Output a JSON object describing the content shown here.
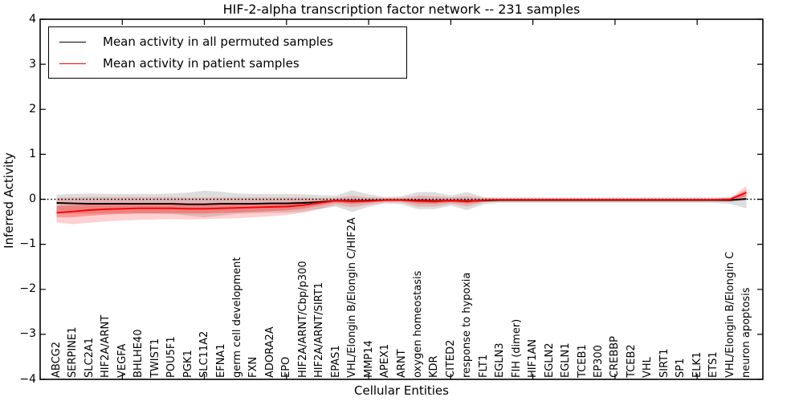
{
  "chart_data": {
    "type": "line",
    "title": "HIF-2-alpha transcription factor network -- 231 samples",
    "xlabel": "Cellular Entities",
    "ylabel": "Inferred Activity",
    "ylim": [
      -4,
      4
    ],
    "yticks": [
      -4,
      -3,
      -2,
      -1,
      0,
      1,
      2,
      3,
      4
    ],
    "xlim": [
      0,
      44
    ],
    "x_tick_step": 5,
    "grid": false,
    "zero_line": {
      "style": "dotted",
      "color": "#000000",
      "y": 0
    },
    "legend": {
      "position": "upper left",
      "items": [
        {
          "label": "Mean activity in all permuted samples",
          "color": "#000000"
        },
        {
          "label": "Mean activity in patient samples",
          "color": "#ff0000"
        }
      ]
    },
    "categories": [
      "ABCG2",
      "SERPINE1",
      "SLC2A1",
      "HIF2A/ARNT",
      "VEGFA",
      "BHLHE40",
      "TWIST1",
      "POU5F1",
      "PGK1",
      "SLC11A2",
      "EFNA1",
      "germ cell development",
      "FXN",
      "ADORA2A",
      "EPO",
      "HIF2A/ARNT/Cbp/p300",
      "HIF2A/ARNT/SIRT1",
      "EPAS1",
      "VHL/Elongin B/Elongin C/HIF2A",
      "MMP14",
      "APEX1",
      "ARNT",
      "oxygen homeostasis",
      "KDR",
      "CITED2",
      "response to hypoxia",
      "FLT1",
      "EGLN3",
      "FIH (dimer)",
      "HIF1AN",
      "EGLN2",
      "EGLN1",
      "TCEB1",
      "EP300",
      "CREBBP",
      "TCEB2",
      "VHL",
      "SIRT1",
      "SP1",
      "ELK1",
      "ETS1",
      "VHL/Elongin B/Elongin C",
      "neuron apoptosis"
    ],
    "series": [
      {
        "name": "Mean activity in all permuted samples",
        "color": "#000000",
        "band_color": "rgba(100,100,100,0.22)",
        "values": [
          -0.08,
          -0.09,
          -0.1,
          -0.1,
          -0.1,
          -0.1,
          -0.1,
          -0.1,
          -0.11,
          -0.11,
          -0.1,
          -0.1,
          -0.1,
          -0.09,
          -0.09,
          -0.08,
          -0.06,
          -0.03,
          -0.04,
          -0.03,
          -0.02,
          -0.02,
          -0.03,
          -0.04,
          -0.03,
          -0.04,
          -0.03,
          -0.02,
          -0.02,
          -0.02,
          -0.02,
          -0.02,
          -0.02,
          -0.02,
          -0.02,
          -0.02,
          -0.02,
          -0.02,
          -0.02,
          -0.02,
          -0.02,
          -0.02,
          0.01
        ],
        "band_upper": [
          0.1,
          0.12,
          0.13,
          0.12,
          0.12,
          0.12,
          0.12,
          0.13,
          0.15,
          0.19,
          0.17,
          0.13,
          0.12,
          0.12,
          0.12,
          0.11,
          0.09,
          0.08,
          0.2,
          0.11,
          0.05,
          0.07,
          0.16,
          0.16,
          0.08,
          0.16,
          0.05,
          0.04,
          0.04,
          0.04,
          0.04,
          0.04,
          0.04,
          0.04,
          0.04,
          0.04,
          0.04,
          0.04,
          0.04,
          0.04,
          0.04,
          0.05,
          0.1
        ],
        "band_lower": [
          -0.3,
          -0.32,
          -0.32,
          -0.31,
          -0.31,
          -0.31,
          -0.32,
          -0.33,
          -0.36,
          -0.4,
          -0.36,
          -0.32,
          -0.31,
          -0.3,
          -0.3,
          -0.27,
          -0.22,
          -0.16,
          -0.28,
          -0.17,
          -0.09,
          -0.11,
          -0.22,
          -0.22,
          -0.14,
          -0.24,
          -0.11,
          -0.08,
          -0.08,
          -0.08,
          -0.08,
          -0.08,
          -0.08,
          -0.08,
          -0.08,
          -0.08,
          -0.08,
          -0.08,
          -0.08,
          -0.08,
          -0.08,
          -0.1,
          -0.2
        ]
      },
      {
        "name": "Mean activity in patient samples",
        "color": "#ff0000",
        "band_color": "rgba(255,0,0,0.18)",
        "inner_band_color": "rgba(255,0,0,0.28)",
        "inner_band_factor": 0.45,
        "values": [
          -0.3,
          -0.27,
          -0.24,
          -0.22,
          -0.21,
          -0.2,
          -0.2,
          -0.2,
          -0.21,
          -0.21,
          -0.2,
          -0.19,
          -0.18,
          -0.17,
          -0.16,
          -0.13,
          -0.08,
          -0.03,
          -0.05,
          -0.04,
          -0.02,
          -0.02,
          -0.04,
          -0.05,
          -0.03,
          -0.05,
          -0.02,
          -0.01,
          -0.01,
          -0.01,
          -0.01,
          -0.01,
          -0.01,
          -0.01,
          -0.01,
          -0.01,
          -0.01,
          -0.01,
          -0.01,
          -0.01,
          -0.01,
          0.0,
          0.15
        ],
        "band_upper": [
          0.03,
          0.04,
          0.05,
          0.05,
          0.05,
          0.05,
          0.05,
          0.05,
          0.04,
          0.04,
          0.04,
          0.04,
          0.04,
          0.04,
          0.04,
          0.04,
          0.03,
          0.03,
          0.08,
          0.04,
          0.03,
          0.03,
          0.08,
          0.07,
          0.04,
          0.07,
          0.03,
          0.02,
          0.02,
          0.02,
          0.02,
          0.02,
          0.02,
          0.02,
          0.02,
          0.02,
          0.02,
          0.02,
          0.02,
          0.02,
          0.02,
          0.03,
          0.3
        ],
        "band_lower": [
          -0.52,
          -0.55,
          -0.52,
          -0.49,
          -0.47,
          -0.46,
          -0.45,
          -0.44,
          -0.45,
          -0.44,
          -0.43,
          -0.42,
          -0.4,
          -0.38,
          -0.35,
          -0.3,
          -0.22,
          -0.12,
          -0.18,
          -0.12,
          -0.07,
          -0.07,
          -0.16,
          -0.16,
          -0.1,
          -0.16,
          -0.07,
          -0.05,
          -0.05,
          -0.05,
          -0.05,
          -0.05,
          -0.05,
          -0.05,
          -0.05,
          -0.05,
          -0.05,
          -0.05,
          -0.05,
          -0.05,
          -0.05,
          -0.06,
          -0.02
        ]
      }
    ]
  }
}
